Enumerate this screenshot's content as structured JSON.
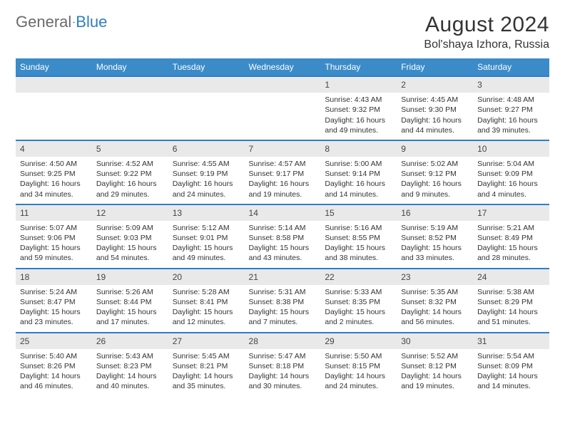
{
  "logo": {
    "part1": "General",
    "part2": "Blue"
  },
  "title": "August 2024",
  "location": "Bol'shaya Izhora, Russia",
  "colors": {
    "header_bg": "#3b8bc9",
    "header_text": "#ffffff",
    "daynum_bg": "#e9e9e9",
    "daynum_border": "#2f7dc4",
    "text": "#333333",
    "logo_gray": "#6a6a6a",
    "logo_blue": "#2f7dc4"
  },
  "weekdays": [
    "Sunday",
    "Monday",
    "Tuesday",
    "Wednesday",
    "Thursday",
    "Friday",
    "Saturday"
  ],
  "weeks": [
    [
      null,
      null,
      null,
      null,
      {
        "n": "1",
        "sr": "4:43 AM",
        "ss": "9:32 PM",
        "d": "16 hours and 49 minutes."
      },
      {
        "n": "2",
        "sr": "4:45 AM",
        "ss": "9:30 PM",
        "d": "16 hours and 44 minutes."
      },
      {
        "n": "3",
        "sr": "4:48 AM",
        "ss": "9:27 PM",
        "d": "16 hours and 39 minutes."
      }
    ],
    [
      {
        "n": "4",
        "sr": "4:50 AM",
        "ss": "9:25 PM",
        "d": "16 hours and 34 minutes."
      },
      {
        "n": "5",
        "sr": "4:52 AM",
        "ss": "9:22 PM",
        "d": "16 hours and 29 minutes."
      },
      {
        "n": "6",
        "sr": "4:55 AM",
        "ss": "9:19 PM",
        "d": "16 hours and 24 minutes."
      },
      {
        "n": "7",
        "sr": "4:57 AM",
        "ss": "9:17 PM",
        "d": "16 hours and 19 minutes."
      },
      {
        "n": "8",
        "sr": "5:00 AM",
        "ss": "9:14 PM",
        "d": "16 hours and 14 minutes."
      },
      {
        "n": "9",
        "sr": "5:02 AM",
        "ss": "9:12 PM",
        "d": "16 hours and 9 minutes."
      },
      {
        "n": "10",
        "sr": "5:04 AM",
        "ss": "9:09 PM",
        "d": "16 hours and 4 minutes."
      }
    ],
    [
      {
        "n": "11",
        "sr": "5:07 AM",
        "ss": "9:06 PM",
        "d": "15 hours and 59 minutes."
      },
      {
        "n": "12",
        "sr": "5:09 AM",
        "ss": "9:03 PM",
        "d": "15 hours and 54 minutes."
      },
      {
        "n": "13",
        "sr": "5:12 AM",
        "ss": "9:01 PM",
        "d": "15 hours and 49 minutes."
      },
      {
        "n": "14",
        "sr": "5:14 AM",
        "ss": "8:58 PM",
        "d": "15 hours and 43 minutes."
      },
      {
        "n": "15",
        "sr": "5:16 AM",
        "ss": "8:55 PM",
        "d": "15 hours and 38 minutes."
      },
      {
        "n": "16",
        "sr": "5:19 AM",
        "ss": "8:52 PM",
        "d": "15 hours and 33 minutes."
      },
      {
        "n": "17",
        "sr": "5:21 AM",
        "ss": "8:49 PM",
        "d": "15 hours and 28 minutes."
      }
    ],
    [
      {
        "n": "18",
        "sr": "5:24 AM",
        "ss": "8:47 PM",
        "d": "15 hours and 23 minutes."
      },
      {
        "n": "19",
        "sr": "5:26 AM",
        "ss": "8:44 PM",
        "d": "15 hours and 17 minutes."
      },
      {
        "n": "20",
        "sr": "5:28 AM",
        "ss": "8:41 PM",
        "d": "15 hours and 12 minutes."
      },
      {
        "n": "21",
        "sr": "5:31 AM",
        "ss": "8:38 PM",
        "d": "15 hours and 7 minutes."
      },
      {
        "n": "22",
        "sr": "5:33 AM",
        "ss": "8:35 PM",
        "d": "15 hours and 2 minutes."
      },
      {
        "n": "23",
        "sr": "5:35 AM",
        "ss": "8:32 PM",
        "d": "14 hours and 56 minutes."
      },
      {
        "n": "24",
        "sr": "5:38 AM",
        "ss": "8:29 PM",
        "d": "14 hours and 51 minutes."
      }
    ],
    [
      {
        "n": "25",
        "sr": "5:40 AM",
        "ss": "8:26 PM",
        "d": "14 hours and 46 minutes."
      },
      {
        "n": "26",
        "sr": "5:43 AM",
        "ss": "8:23 PM",
        "d": "14 hours and 40 minutes."
      },
      {
        "n": "27",
        "sr": "5:45 AM",
        "ss": "8:21 PM",
        "d": "14 hours and 35 minutes."
      },
      {
        "n": "28",
        "sr": "5:47 AM",
        "ss": "8:18 PM",
        "d": "14 hours and 30 minutes."
      },
      {
        "n": "29",
        "sr": "5:50 AM",
        "ss": "8:15 PM",
        "d": "14 hours and 24 minutes."
      },
      {
        "n": "30",
        "sr": "5:52 AM",
        "ss": "8:12 PM",
        "d": "14 hours and 19 minutes."
      },
      {
        "n": "31",
        "sr": "5:54 AM",
        "ss": "8:09 PM",
        "d": "14 hours and 14 minutes."
      }
    ]
  ],
  "labels": {
    "sunrise": "Sunrise:",
    "sunset": "Sunset:",
    "daylight": "Daylight:"
  }
}
